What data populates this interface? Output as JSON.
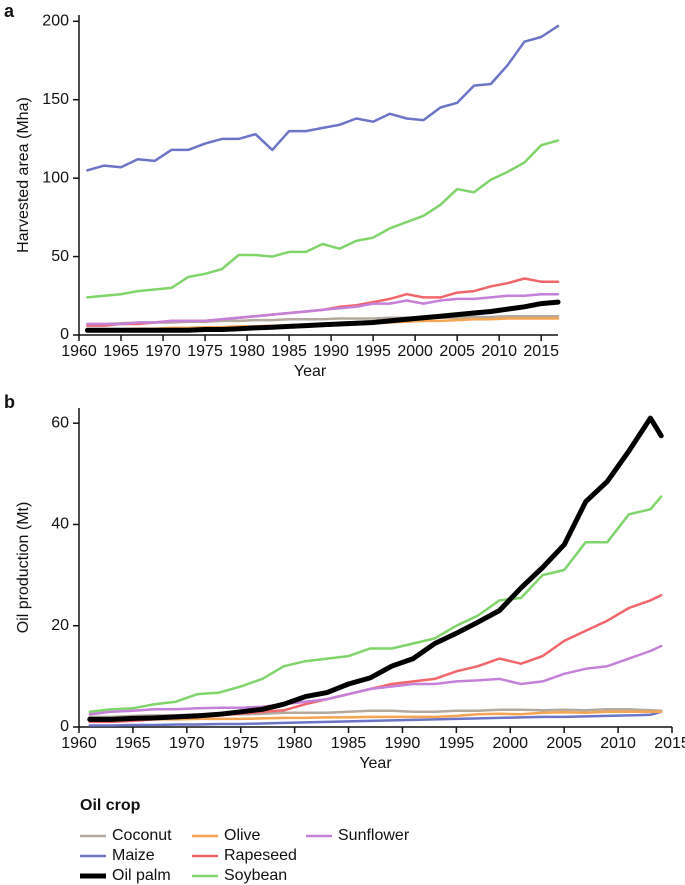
{
  "chart_data": [
    {
      "type": "line",
      "panel_label": "a",
      "xlabel": "Year",
      "ylabel": "Harvested area (Mha)",
      "xlim": [
        1960,
        2017
      ],
      "ylim": [
        0,
        204
      ],
      "xticks": [
        1960,
        1965,
        1970,
        1975,
        1980,
        1985,
        1990,
        1995,
        2000,
        2005,
        2010,
        2015
      ],
      "yticks": [
        0,
        50,
        100,
        150,
        200
      ],
      "legend_title": "Oil crop",
      "x": [
        1961,
        1963,
        1965,
        1967,
        1969,
        1971,
        1973,
        1975,
        1977,
        1979,
        1981,
        1983,
        1985,
        1987,
        1989,
        1991,
        1993,
        1995,
        1997,
        1999,
        2001,
        2003,
        2005,
        2007,
        2009,
        2011,
        2013,
        2015,
        2017
      ],
      "series": [
        {
          "name": "Coconut",
          "color": "#b3a99c",
          "width": 2.5,
          "values": [
            7,
            7,
            7.5,
            8,
            8,
            8,
            8.5,
            8.5,
            9,
            9,
            9.5,
            9.5,
            10,
            10,
            10,
            10.5,
            10.5,
            10.5,
            11,
            11,
            11,
            11,
            11,
            11.5,
            11.5,
            12,
            12,
            12,
            12
          ]
        },
        {
          "name": "Maize",
          "color": "#6b74c7",
          "width": 2.5,
          "values": [
            105,
            108,
            107,
            112,
            111,
            118,
            118,
            122,
            125,
            125,
            128,
            118,
            130,
            130,
            132,
            134,
            138,
            136,
            141,
            138,
            137,
            145,
            148,
            159,
            160,
            172,
            187,
            190,
            197
          ]
        },
        {
          "name": "Oil palm",
          "color": "#000000",
          "width": 5,
          "values": [
            3,
            3,
            3,
            3,
            3,
            3,
            3,
            3.5,
            3.5,
            4,
            4.5,
            5,
            5.5,
            6,
            6.5,
            7,
            7.5,
            8,
            9,
            10,
            11,
            12,
            13,
            14,
            15,
            16.5,
            18,
            20,
            21
          ]
        },
        {
          "name": "Olive",
          "color": "#f5a552",
          "width": 2.5,
          "values": [
            3,
            3,
            3.5,
            4,
            4,
            4.5,
            4.5,
            5,
            5,
            5.5,
            5.5,
            6,
            6,
            6.5,
            7,
            7,
            7.5,
            8,
            8,
            8.5,
            9,
            9,
            9.5,
            10,
            10,
            10.5,
            10.5,
            10.5,
            10.5
          ]
        },
        {
          "name": "Rapeseed",
          "color": "#f0666a",
          "width": 2.5,
          "values": [
            6,
            6,
            7,
            7,
            8,
            9,
            9,
            9,
            10,
            11,
            12,
            13,
            14,
            15,
            16,
            18,
            19,
            21,
            23,
            26,
            24,
            24,
            27,
            28,
            31,
            33,
            36,
            34,
            34
          ]
        },
        {
          "name": "Soybean",
          "color": "#7fd46a",
          "width": 2.5,
          "values": [
            24,
            25,
            26,
            28,
            29,
            30,
            37,
            39,
            42,
            51,
            51,
            50,
            53,
            53,
            58,
            55,
            60,
            62,
            68,
            72,
            76,
            83,
            93,
            91,
            99,
            104,
            110,
            121,
            124
          ]
        },
        {
          "name": "Sunflower",
          "color": "#c580d9",
          "width": 2.5,
          "values": [
            7,
            7,
            7,
            8,
            8,
            9,
            9,
            9,
            10,
            11,
            12,
            13,
            14,
            15,
            16,
            17,
            18,
            20,
            20,
            22,
            20,
            22,
            23,
            23,
            24,
            25,
            25,
            26,
            26
          ]
        }
      ]
    },
    {
      "type": "line",
      "panel_label": "b",
      "xlabel": "Year",
      "ylabel": "Oil production (Mt)",
      "xlim": [
        1960,
        2015
      ],
      "ylim": [
        0,
        63
      ],
      "xticks": [
        1960,
        1965,
        1970,
        1975,
        1980,
        1985,
        1990,
        1995,
        2000,
        2005,
        2010,
        2015
      ],
      "yticks": [
        0,
        20,
        40,
        60
      ],
      "x": [
        1961,
        1963,
        1965,
        1967,
        1969,
        1971,
        1973,
        1975,
        1977,
        1979,
        1981,
        1983,
        1985,
        1987,
        1989,
        1991,
        1993,
        1995,
        1997,
        1999,
        2001,
        2003,
        2005,
        2007,
        2009,
        2011,
        2013,
        2014
      ],
      "series": [
        {
          "color": "#b3a99c",
          "width": 2.5,
          "values": [
            2,
            2,
            2.2,
            2.3,
            2.3,
            2.5,
            2.5,
            2.5,
            2.6,
            2.8,
            2.8,
            2.8,
            3,
            3.2,
            3.2,
            3,
            3,
            3.2,
            3.2,
            3.4,
            3.4,
            3.3,
            3.4,
            3.3,
            3.5,
            3.5,
            3.3,
            3.2
          ]
        },
        {
          "color": "#6b74c7",
          "width": 2.5,
          "values": [
            0.3,
            0.3,
            0.4,
            0.4,
            0.5,
            0.5,
            0.6,
            0.6,
            0.7,
            0.8,
            0.9,
            1,
            1.1,
            1.2,
            1.3,
            1.4,
            1.5,
            1.6,
            1.7,
            1.8,
            1.9,
            2,
            2,
            2.1,
            2.2,
            2.3,
            2.4,
            3
          ]
        },
        {
          "color": "#000000",
          "width": 5,
          "values": [
            1.5,
            1.5,
            1.7,
            1.8,
            2,
            2.2,
            2.5,
            3,
            3.5,
            4.5,
            6,
            6.8,
            8.5,
            9.7,
            12,
            13.5,
            16.5,
            18.5,
            20.7,
            23,
            27.5,
            31.5,
            36,
            44.5,
            48.5,
            54.5,
            61,
            57.5
          ]
        },
        {
          "color": "#f5a552",
          "width": 2.5,
          "values": [
            1.5,
            1.5,
            1.5,
            1.5,
            1.5,
            1.6,
            1.6,
            1.6,
            1.7,
            1.8,
            1.8,
            1.9,
            1.9,
            2,
            2,
            2,
            2,
            2.2,
            2.5,
            2.6,
            2.5,
            2.8,
            2.9,
            2.8,
            3,
            3,
            3,
            3
          ]
        },
        {
          "color": "#f0666a",
          "width": 2.5,
          "values": [
            1,
            1,
            1.2,
            1.5,
            1.8,
            2,
            2.3,
            2.6,
            3,
            3.3,
            4.5,
            5.5,
            6.5,
            7.5,
            8.5,
            9,
            9.5,
            11,
            12,
            13.5,
            12.5,
            14,
            17,
            19,
            21,
            23.5,
            25,
            26
          ]
        },
        {
          "color": "#7fd46a",
          "width": 2.5,
          "values": [
            3,
            3.5,
            3.7,
            4.5,
            5,
            6.5,
            6.8,
            8,
            9.5,
            12,
            13,
            13.5,
            14,
            15.5,
            15.5,
            16.5,
            17.5,
            20,
            22,
            25,
            25.5,
            30,
            31,
            36.5,
            36.5,
            42,
            43,
            45.5
          ]
        },
        {
          "color": "#c580d9",
          "width": 2.5,
          "values": [
            2.5,
            3,
            3.2,
            3.5,
            3.5,
            3.7,
            3.8,
            3.8,
            4,
            4.5,
            5,
            5.5,
            6.5,
            7.5,
            8,
            8.5,
            8.5,
            9,
            9.2,
            9.5,
            8.5,
            9,
            10.5,
            11.5,
            12,
            13.5,
            15,
            16
          ]
        }
      ]
    }
  ]
}
